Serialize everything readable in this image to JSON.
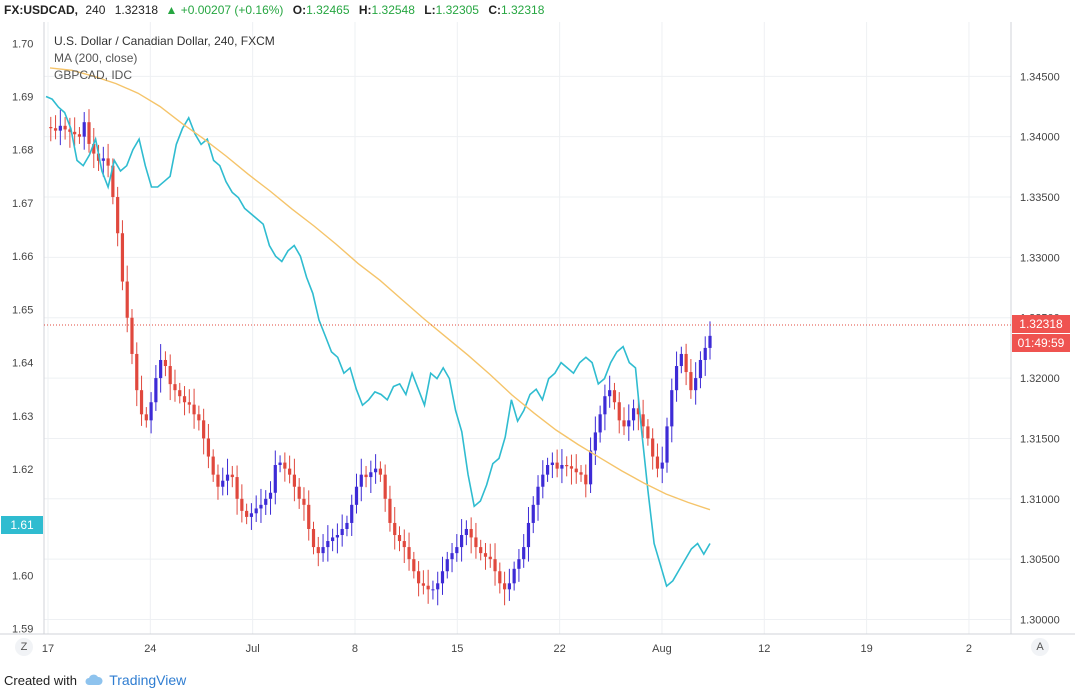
{
  "header": {
    "symbol": "FX:USDCAD,",
    "timeframe": "240",
    "last": "1.32318",
    "change": "+0.00207 (+0.16%)",
    "open_label": "O:",
    "open": "1.32465",
    "high_label": "H:",
    "high": "1.32548",
    "low_label": "L:",
    "low": "1.32305",
    "close_label": "C:",
    "close": "1.32318",
    "change_arrow": "triangle-up-icon"
  },
  "legend": {
    "main": "U.S. Dollar / Canadian Dollar, 240, FXCM",
    "ma": "MA (200, close)",
    "compare": "GBPCAD, IDC"
  },
  "footer": {
    "created_with": "Created with",
    "brand": "TradingView"
  },
  "buttons": {
    "left": "Z",
    "right": "A"
  },
  "colors": {
    "up": "#3d2bd6",
    "down": "#e0483d",
    "compare": "#2fbcd0",
    "ma": "#f5c46a",
    "grid": "#eef0f3",
    "axis": "#d0d3d8",
    "price_badge": "#ef5350",
    "left_badge": "#2fbcd0"
  },
  "chart_data": {
    "type": "line",
    "axes": {
      "right_ticks": [
        "1.34500",
        "1.34000",
        "1.33500",
        "1.33000",
        "1.32500",
        "1.32000",
        "1.31500",
        "1.31000",
        "1.30500",
        "1.30000"
      ],
      "left_ticks": [
        "1.70",
        "1.69",
        "1.68",
        "1.67",
        "1.66",
        "1.65",
        "1.64",
        "1.63",
        "1.62",
        "1.61",
        "1.60",
        "1.59"
      ],
      "x_ticks": [
        "17",
        "24",
        "Jul",
        "8",
        "15",
        "22",
        "Aug",
        "12",
        "19",
        "2"
      ],
      "right_range": [
        1.2988,
        1.3495
      ],
      "left_range": [
        1.589,
        1.704
      ]
    },
    "current_price_label": "1.32318",
    "countdown_label": "01:49:59",
    "left_price_label": "1.61",
    "series": [
      {
        "name": "U.S. Dollar / Canadian Dollar, 240, FXCM",
        "kind": "candles",
        "values": [
          1.3408,
          1.3407,
          1.3405,
          1.3409,
          1.3406,
          1.3404,
          1.3402,
          1.34,
          1.3412,
          1.3394,
          1.3386,
          1.338,
          1.3382,
          1.3376,
          1.335,
          1.332,
          1.328,
          1.325,
          1.322,
          1.319,
          1.317,
          1.3165,
          1.318,
          1.32,
          1.3215,
          1.321,
          1.3195,
          1.319,
          1.3185,
          1.318,
          1.3178,
          1.317,
          1.3165,
          1.315,
          1.3135,
          1.312,
          1.311,
          1.3115,
          1.312,
          1.3118,
          1.31,
          1.309,
          1.3085,
          1.3088,
          1.3092,
          1.3095,
          1.31,
          1.3105,
          1.3128,
          1.313,
          1.3125,
          1.312,
          1.311,
          1.31,
          1.3095,
          1.3075,
          1.306,
          1.3055,
          1.306,
          1.3065,
          1.3068,
          1.307,
          1.3075,
          1.308,
          1.3095,
          1.311,
          1.312,
          1.3118,
          1.3122,
          1.3125,
          1.312,
          1.31,
          1.308,
          1.307,
          1.3065,
          1.306,
          1.305,
          1.304,
          1.303,
          1.3028,
          1.3025,
          1.3025,
          1.303,
          1.304,
          1.305,
          1.3055,
          1.306,
          1.307,
          1.3075,
          1.3068,
          1.306,
          1.3055,
          1.3052,
          1.305,
          1.304,
          1.303,
          1.3025,
          1.303,
          1.3042,
          1.305,
          1.306,
          1.308,
          1.3095,
          1.311,
          1.312,
          1.3128,
          1.313,
          1.3125,
          1.3128,
          1.3127,
          1.3125,
          1.3122,
          1.312,
          1.3112,
          1.314,
          1.3155,
          1.317,
          1.3185,
          1.319,
          1.318,
          1.3165,
          1.316,
          1.3165,
          1.3175,
          1.317,
          1.316,
          1.315,
          1.3135,
          1.3125,
          1.313,
          1.316,
          1.319,
          1.321,
          1.322,
          1.3205,
          1.319,
          1.32,
          1.3215,
          1.3225,
          1.3235
        ]
      },
      {
        "name": "GBPCAD, IDC",
        "kind": "line",
        "values": [
          1.69,
          1.6895,
          1.688,
          1.687,
          1.684,
          1.678,
          1.677,
          1.679,
          1.682,
          1.676,
          1.673,
          1.678,
          1.676,
          1.677,
          1.68,
          1.682,
          1.677,
          1.673,
          1.673,
          1.674,
          1.675,
          1.681,
          1.684,
          1.686,
          1.683,
          1.681,
          1.682,
          1.678,
          1.677,
          1.674,
          1.672,
          1.671,
          1.669,
          1.668,
          1.667,
          1.666,
          1.662,
          1.66,
          1.659,
          1.661,
          1.662,
          1.66,
          1.656,
          1.653,
          1.648,
          1.645,
          1.642,
          1.641,
          1.638,
          1.639,
          1.635,
          1.632,
          1.633,
          1.6345,
          1.634,
          1.633,
          1.6355,
          1.636,
          1.634,
          1.638,
          1.635,
          1.632,
          1.638,
          1.637,
          1.639,
          1.637,
          1.631,
          1.627,
          1.619,
          1.613,
          1.614,
          1.617,
          1.621,
          1.622,
          1.626,
          1.633,
          1.629,
          1.631,
          1.634,
          1.635,
          1.633,
          1.637,
          1.638,
          1.64,
          1.639,
          1.638,
          1.64,
          1.641,
          1.64,
          1.636,
          1.637,
          1.64,
          1.642,
          1.643,
          1.64,
          1.639,
          1.627,
          1.616,
          1.606,
          1.602,
          1.598,
          1.599,
          1.601,
          1.603,
          1.605,
          1.606,
          1.604,
          1.606
        ]
      },
      {
        "name": "MA (200, close)",
        "kind": "line",
        "values": [
          1.3457,
          1.3455,
          1.345,
          1.3444,
          1.3436,
          1.3425,
          1.3411,
          1.3398,
          1.3384,
          1.3369,
          1.3355,
          1.334,
          1.3326,
          1.3311,
          1.3295,
          1.3281,
          1.3265,
          1.3249,
          1.3234,
          1.3219,
          1.3203,
          1.3186,
          1.3171,
          1.3157,
          1.3145,
          1.3134,
          1.3123,
          1.3113,
          1.3104,
          1.3097,
          1.3091
        ]
      }
    ]
  }
}
